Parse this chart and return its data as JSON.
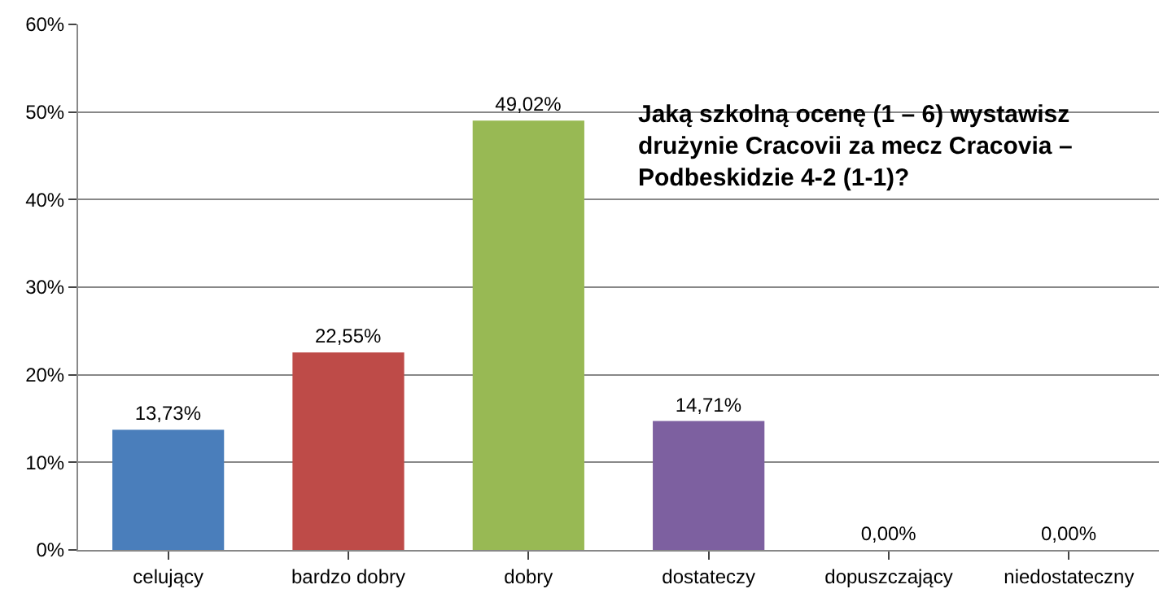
{
  "chart_data": {
    "type": "bar",
    "title": "Jaką szkolną ocenę (1 – 6) wystawisz\ndrużynie Cracovii za mecz Cracovia –\nPodbeskidzie 4-2 (1-1)?",
    "categories": [
      "celujący",
      "bardzo dobry",
      "dobry",
      "dostateczy",
      "dopuszczający",
      "niedostateczny"
    ],
    "values": [
      13.73,
      22.55,
      49.02,
      14.71,
      0.0,
      0.0
    ],
    "colors": [
      "#4a7ebb",
      "#be4b48",
      "#98b954",
      "#7d60a0",
      "#4a7ebb",
      "#4a7ebb"
    ],
    "value_labels": [
      "13,73%",
      "22,55%",
      "49,02%",
      "14,71%",
      "0,00%",
      "0,00%"
    ],
    "ylim": [
      0,
      60
    ],
    "yticks": [
      {
        "value": 0,
        "label": "0%"
      },
      {
        "value": 10,
        "label": "10%"
      },
      {
        "value": 20,
        "label": "20%"
      },
      {
        "value": 30,
        "label": "30%"
      },
      {
        "value": 40,
        "label": "40%"
      },
      {
        "value": 50,
        "label": "50%"
      },
      {
        "value": 60,
        "label": "60%"
      }
    ],
    "grid": "y"
  }
}
